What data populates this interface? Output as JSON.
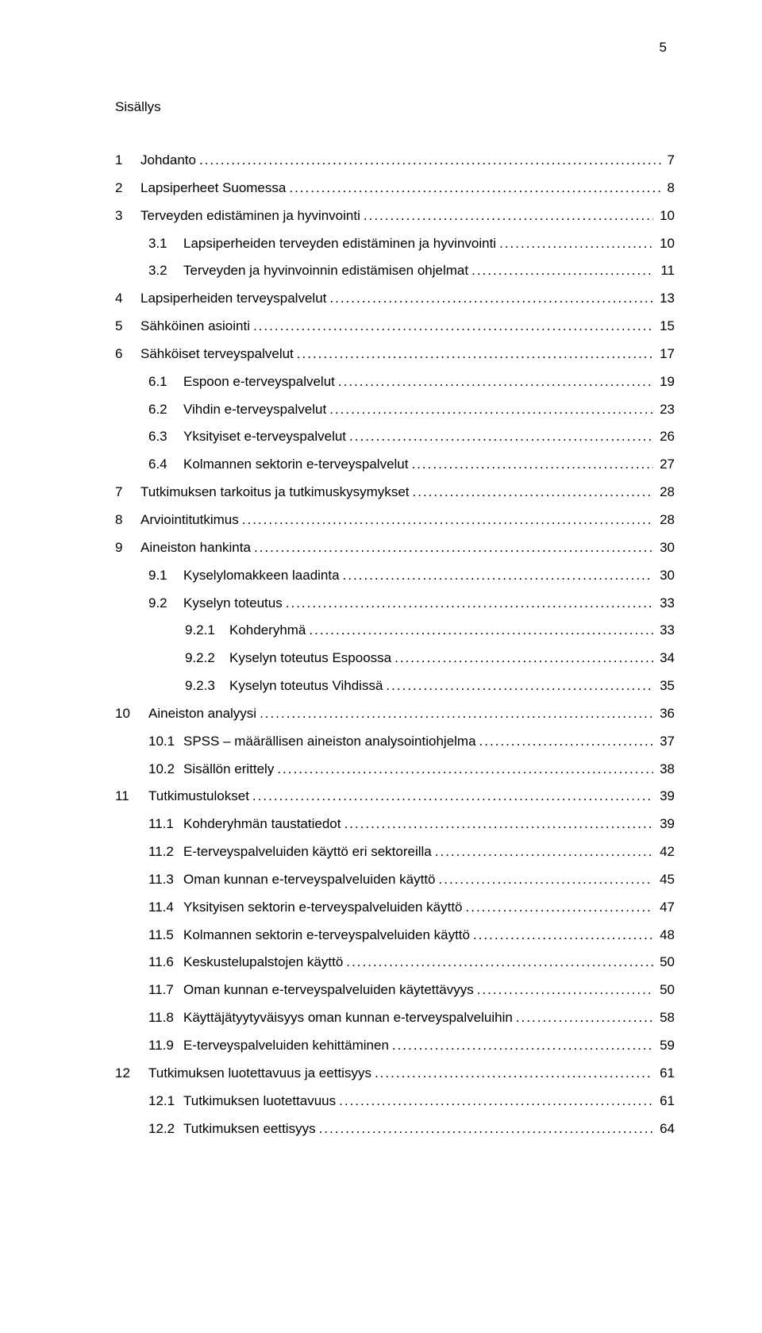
{
  "page_number": "5",
  "title": "Sisällys",
  "toc": [
    {
      "level": 1,
      "num": "1",
      "text": "Johdanto",
      "page": "7"
    },
    {
      "level": 1,
      "num": "2",
      "text": "Lapsiperheet Suomessa",
      "page": "8"
    },
    {
      "level": 1,
      "num": "3",
      "text": "Terveyden edistäminen ja hyvinvointi",
      "page": "10"
    },
    {
      "level": 2,
      "num": "3.1",
      "text": "Lapsiperheiden terveyden edistäminen ja hyvinvointi",
      "page": "10"
    },
    {
      "level": 2,
      "num": "3.2",
      "text": "Terveyden ja hyvinvoinnin edistämisen ohjelmat",
      "page": "11"
    },
    {
      "level": 1,
      "num": "4",
      "text": "Lapsiperheiden terveyspalvelut",
      "page": "13"
    },
    {
      "level": 1,
      "num": "5",
      "text": "Sähköinen asiointi",
      "page": "15"
    },
    {
      "level": 1,
      "num": "6",
      "text": "Sähköiset terveyspalvelut",
      "page": "17"
    },
    {
      "level": 2,
      "num": "6.1",
      "text": "Espoon e-terveyspalvelut",
      "page": "19"
    },
    {
      "level": 2,
      "num": "6.2",
      "text": "Vihdin e-terveyspalvelut",
      "page": "23"
    },
    {
      "level": 2,
      "num": "6.3",
      "text": "Yksityiset e-terveyspalvelut",
      "page": "26"
    },
    {
      "level": 2,
      "num": "6.4",
      "text": "Kolmannen sektorin e-terveyspalvelut",
      "page": "27"
    },
    {
      "level": 1,
      "num": "7",
      "text": "Tutkimuksen tarkoitus ja tutkimuskysymykset",
      "page": "28"
    },
    {
      "level": 1,
      "num": "8",
      "text": "Arviointitutkimus",
      "page": "28"
    },
    {
      "level": 1,
      "num": "9",
      "text": "Aineiston hankinta",
      "page": "30"
    },
    {
      "level": 2,
      "num": "9.1",
      "text": "Kyselylomakkeen laadinta",
      "page": "30"
    },
    {
      "level": 2,
      "num": "9.2",
      "text": "Kyselyn toteutus",
      "page": "33"
    },
    {
      "level": 3,
      "num": "9.2.1",
      "text": "Kohderyhmä",
      "page": "33"
    },
    {
      "level": 3,
      "num": "9.2.2",
      "text": "Kyselyn toteutus Espoossa",
      "page": "34"
    },
    {
      "level": 3,
      "num": "9.2.3",
      "text": "Kyselyn toteutus Vihdissä",
      "page": "35"
    },
    {
      "level": 1,
      "num": "10",
      "text": "Aineiston analyysi",
      "page": "36"
    },
    {
      "level": 2,
      "num": "10.1",
      "text": "SPSS – määrällisen aineiston analysointiohjelma",
      "page": "37"
    },
    {
      "level": 2,
      "num": "10.2",
      "text": "Sisällön erittely",
      "page": "38"
    },
    {
      "level": 1,
      "num": "11",
      "text": "Tutkimustulokset",
      "page": "39"
    },
    {
      "level": 2,
      "num": "11.1",
      "text": "Kohderyhmän taustatiedot",
      "page": "39"
    },
    {
      "level": 2,
      "num": "11.2",
      "text": "E-terveyspalveluiden käyttö eri sektoreilla",
      "page": "42"
    },
    {
      "level": 2,
      "num": "11.3",
      "text": "Oman kunnan e-terveyspalveluiden käyttö",
      "page": "45"
    },
    {
      "level": 2,
      "num": "11.4",
      "text": "Yksityisen sektorin e-terveyspalveluiden käyttö",
      "page": "47"
    },
    {
      "level": 2,
      "num": "11.5",
      "text": "Kolmannen sektorin e-terveyspalveluiden käyttö",
      "page": "48"
    },
    {
      "level": 2,
      "num": "11.6",
      "text": "Keskustelupalstojen käyttö",
      "page": "50"
    },
    {
      "level": 2,
      "num": "11.7",
      "text": "Oman kunnan e-terveyspalveluiden käytettävyys",
      "page": "50"
    },
    {
      "level": 2,
      "num": "11.8",
      "text": "Käyttäjätyytyväisyys oman kunnan e-terveyspalveluihin",
      "page": "58"
    },
    {
      "level": 2,
      "num": "11.9",
      "text": "E-terveyspalveluiden kehittäminen",
      "page": "59"
    },
    {
      "level": 1,
      "num": "12",
      "text": "Tutkimuksen luotettavuus ja eettisyys",
      "page": "61"
    },
    {
      "level": 2,
      "num": "12.1",
      "text": "Tutkimuksen luotettavuus",
      "page": "61"
    },
    {
      "level": 2,
      "num": "12.2",
      "text": "Tutkimuksen eettisyys",
      "page": "64"
    }
  ]
}
